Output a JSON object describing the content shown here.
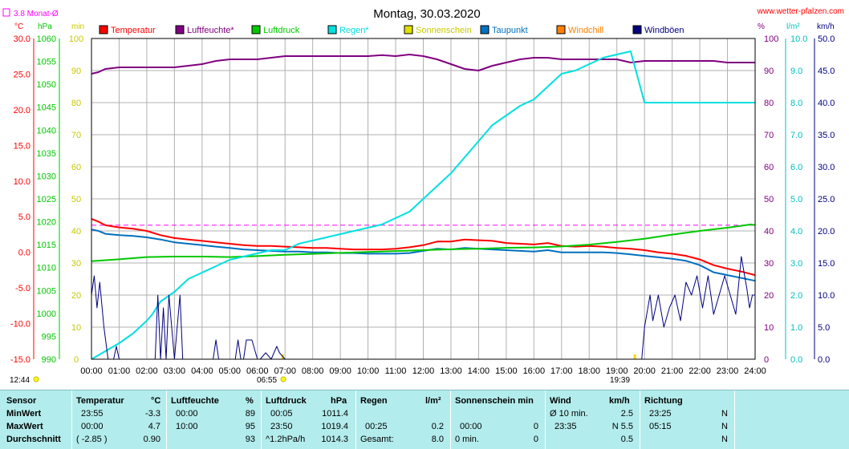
{
  "title": "Montag, 30.03.2020",
  "site": "www.wetter-pfalzen.com",
  "monthly_avg_label": "3.8 Monat-Ø",
  "colors": {
    "temperatur": "#ff0000",
    "luftfeuchte": "#800080",
    "luftdruck": "#00c800",
    "regen": "#00e0e0",
    "sonnenschein": "#e0e000",
    "taupunkt": "#0070c0",
    "windchill": "#ff8000",
    "windboeen": "#000080",
    "avg_line": "#ff00ff"
  },
  "units": {
    "temp": "°C",
    "pressure": "hPa",
    "sun": "min",
    "humidity": "%",
    "rain": "l/m²",
    "wind": "km/h"
  },
  "legend": [
    "Temperatur",
    "Luftfeuchte*",
    "Luftdruck",
    "Regen*",
    "Sonnenschein",
    "Taupunkt",
    "Windchill",
    "Windböen"
  ],
  "markers": {
    "sunrise": "06:55",
    "sunset": "19:39",
    "left_time": "12:44"
  },
  "chart_data": {
    "type": "line",
    "x_ticks": [
      "00:00",
      "01:00",
      "02:00",
      "03:00",
      "04:00",
      "05:00",
      "06:00",
      "07:00",
      "08:00",
      "09:00",
      "10:00",
      "11:00",
      "12:00",
      "13:00",
      "14:00",
      "15:00",
      "16:00",
      "17:00",
      "18:00",
      "19:00",
      "20:00",
      "21:00",
      "22:00",
      "23:00",
      "24:00"
    ],
    "x_range_hours": [
      0,
      24
    ],
    "axes": {
      "temp": {
        "range": [
          -15,
          30
        ],
        "ticks": [
          "30.0",
          "25.0",
          "20.0",
          "15.0",
          "10.0",
          "5.0",
          "0.0",
          "-5.0",
          "-10.0",
          "-15.0"
        ]
      },
      "pressure": {
        "range": [
          990,
          1060
        ],
        "ticks": [
          "1060",
          "1055",
          "1050",
          "1045",
          "1040",
          "1035",
          "1030",
          "1025",
          "1020",
          "1015",
          "1010",
          "1005",
          "1000",
          "995",
          "990"
        ]
      },
      "sun": {
        "range": [
          0,
          100
        ],
        "ticks": [
          "100",
          "90",
          "80",
          "70",
          "60",
          "50",
          "40",
          "30",
          "20",
          "10",
          "0"
        ]
      },
      "humidity": {
        "range": [
          0,
          100
        ],
        "ticks": [
          "100",
          "90",
          "80",
          "70",
          "60",
          "50",
          "40",
          "30",
          "20",
          "10",
          "0"
        ]
      },
      "rain": {
        "range": [
          0,
          10
        ],
        "ticks": [
          "10.0",
          "9.0",
          "8.0",
          "7.0",
          "6.0",
          "5.0",
          "4.0",
          "3.0",
          "2.0",
          "1.0",
          "0.0"
        ]
      },
      "wind": {
        "range": [
          0,
          50
        ],
        "ticks": [
          "50.0",
          "45.0",
          "40.0",
          "35.0",
          "30.0",
          "25.0",
          "20.0",
          "15.0",
          "10.0",
          "5.0",
          "0.0"
        ]
      }
    },
    "monthly_avg_temp": 3.8,
    "series": [
      {
        "name": "Temperatur",
        "axis": "temp",
        "color": "#ff0000",
        "x": [
          0,
          0.25,
          0.5,
          1,
          1.5,
          2,
          2.5,
          3,
          3.5,
          4,
          4.5,
          5,
          5.5,
          6,
          6.5,
          7,
          7.5,
          8,
          8.5,
          9,
          9.5,
          10,
          10.5,
          11,
          11.5,
          12,
          12.5,
          13,
          13.5,
          14,
          14.5,
          15,
          15.5,
          16,
          16.5,
          17,
          17.5,
          18,
          18.5,
          19,
          19.5,
          20,
          20.5,
          21,
          21.5,
          22,
          22.5,
          23,
          23.5,
          24
        ],
        "y": [
          4.7,
          4.3,
          3.8,
          3.5,
          3.3,
          3.0,
          2.4,
          2.0,
          1.8,
          1.6,
          1.4,
          1.2,
          1.0,
          0.9,
          0.9,
          0.8,
          0.7,
          0.6,
          0.6,
          0.5,
          0.4,
          0.4,
          0.4,
          0.5,
          0.7,
          1.0,
          1.5,
          1.5,
          1.8,
          1.7,
          1.6,
          1.3,
          1.2,
          1.1,
          1.3,
          0.9,
          0.8,
          0.9,
          0.8,
          0.6,
          0.5,
          0.3,
          0.0,
          -0.2,
          -0.5,
          -1.0,
          -1.8,
          -2.3,
          -2.7,
          -3.2
        ]
      },
      {
        "name": "Taupunkt",
        "axis": "temp",
        "color": "#0070c0",
        "x": [
          0,
          0.25,
          0.5,
          1,
          1.5,
          2,
          2.5,
          3,
          3.5,
          4,
          4.5,
          5,
          5.5,
          6,
          6.5,
          7,
          7.5,
          8,
          8.5,
          9,
          9.5,
          10,
          10.5,
          11,
          11.5,
          12,
          12.5,
          13,
          13.5,
          14,
          14.5,
          15,
          15.5,
          16,
          16.5,
          17,
          17.5,
          18,
          18.5,
          19,
          19.5,
          20,
          20.5,
          21,
          21.5,
          22,
          22.5,
          23,
          23.5,
          24
        ],
        "y": [
          3.2,
          3.0,
          2.6,
          2.4,
          2.3,
          2.1,
          1.8,
          1.4,
          1.2,
          1.0,
          0.8,
          0.6,
          0.4,
          0.3,
          0.2,
          0.1,
          0.1,
          0.0,
          0.0,
          -0.1,
          -0.1,
          -0.2,
          -0.2,
          -0.2,
          -0.1,
          0.2,
          0.5,
          0.4,
          0.6,
          0.5,
          0.4,
          0.3,
          0.2,
          0.1,
          0.3,
          0.0,
          0.0,
          0.0,
          0.0,
          -0.1,
          -0.3,
          -0.5,
          -0.7,
          -0.9,
          -1.2,
          -1.8,
          -2.8,
          -3.2,
          -3.6,
          -4.0
        ]
      },
      {
        "name": "Luftdruck",
        "axis": "pressure",
        "color": "#00c800",
        "x": [
          0,
          1,
          2,
          3,
          4,
          5,
          6,
          7,
          8,
          9,
          10,
          11,
          12,
          13,
          14,
          15,
          16,
          17,
          18,
          19,
          20,
          21,
          22,
          23,
          23.83,
          24
        ],
        "y": [
          1011.4,
          1011.8,
          1012.3,
          1012.4,
          1012.4,
          1012.3,
          1012.5,
          1012.8,
          1013.0,
          1013.2,
          1013.4,
          1013.6,
          1013.8,
          1014.0,
          1014.1,
          1014.3,
          1014.4,
          1014.6,
          1015.0,
          1015.6,
          1016.3,
          1017.2,
          1018.0,
          1018.7,
          1019.4,
          1019.3
        ]
      },
      {
        "name": "Luftfeuchte*",
        "axis": "humidity",
        "color": "#800080",
        "x": [
          0,
          0.25,
          0.5,
          1,
          1.5,
          2,
          2.5,
          3,
          3.5,
          4,
          4.5,
          5,
          5.5,
          6,
          6.5,
          7,
          7.5,
          8,
          8.5,
          9,
          9.5,
          10,
          10.5,
          11,
          11.5,
          12,
          12.5,
          13,
          13.5,
          14,
          14.5,
          15,
          15.5,
          16,
          16.5,
          17,
          17.5,
          18,
          18.5,
          19,
          19.5,
          20,
          20.5,
          21,
          21.5,
          22,
          22.5,
          23,
          23.5,
          24
        ],
        "y": [
          89,
          89.5,
          90.5,
          91,
          91,
          91,
          91,
          91,
          91.5,
          92,
          93,
          93.5,
          93.5,
          93.5,
          94,
          94.5,
          94.5,
          94.5,
          94.5,
          94.5,
          94.5,
          94.5,
          94.8,
          94.5,
          95,
          94.5,
          93.5,
          92,
          90.5,
          90,
          91.5,
          92.5,
          93.5,
          94,
          94,
          93.5,
          93.5,
          93.5,
          93.5,
          93.5,
          92.5,
          93,
          93,
          93,
          93,
          93,
          93,
          92.5,
          92.5,
          92.5
        ]
      },
      {
        "name": "Regen*",
        "axis": "rain",
        "color": "#00e0e0",
        "x": [
          0,
          0.4,
          0.6,
          1,
          1.5,
          2,
          2.2,
          2.5,
          3,
          3.5,
          4,
          4.5,
          5,
          5.5,
          6,
          6.5,
          7,
          7.5,
          8,
          8.5,
          9,
          9.5,
          10,
          10.5,
          11,
          11.5,
          12,
          12.5,
          13,
          13.5,
          14,
          14.5,
          15,
          15.5,
          16,
          16.5,
          17,
          17.5,
          18,
          18.5,
          19,
          19.5,
          20,
          21,
          22,
          23,
          24
        ],
        "y": [
          0,
          0.2,
          0.3,
          0.5,
          0.8,
          1.2,
          1.4,
          1.8,
          2.1,
          2.5,
          2.7,
          2.9,
          3.1,
          3.2,
          3.3,
          3.4,
          3.4,
          3.6,
          3.7,
          3.8,
          3.9,
          4.0,
          4.1,
          4.2,
          4.4,
          4.6,
          5.0,
          5.4,
          5.8,
          6.3,
          6.8,
          7.3,
          7.6,
          7.9,
          8.1,
          8.5,
          8.9,
          9.0,
          9.2,
          9.4,
          9.5,
          9.6,
          8.0,
          8.0,
          8.0,
          8.0,
          8.0
        ]
      },
      {
        "name": "Windböen",
        "axis": "wind",
        "color": "#000080",
        "x": [
          0,
          0.1,
          0.2,
          0.3,
          0.45,
          0.6,
          0.8,
          0.9,
          1.0,
          1.1,
          1.2,
          1.3,
          2.3,
          2.4,
          2.5,
          2.6,
          2.7,
          2.8,
          3.0,
          3.1,
          3.2,
          3.3,
          4.4,
          4.5,
          4.6,
          4.7,
          4.8,
          5.2,
          5.3,
          5.4,
          5.5,
          5.6,
          5.8,
          6.0,
          6.1,
          6.3,
          6.5,
          6.7,
          6.8,
          7.0,
          7.1,
          19.9,
          20.0,
          20.2,
          20.3,
          20.5,
          20.7,
          20.9,
          21.1,
          21.3,
          21.5,
          21.7,
          21.9,
          22.1,
          22.3,
          22.5,
          22.7,
          22.9,
          23.1,
          23.3,
          23.5,
          23.7,
          23.8,
          23.9,
          24
        ],
        "y": [
          10,
          13,
          8,
          12,
          5,
          0,
          0,
          2,
          0,
          0,
          0,
          0,
          0,
          10,
          0,
          8,
          0,
          10,
          0,
          5,
          10,
          0,
          0,
          3,
          0,
          0,
          0,
          0,
          3,
          0,
          0,
          3,
          3,
          0,
          0,
          1,
          0,
          2,
          1,
          0,
          0,
          0,
          5,
          10,
          6,
          10,
          5,
          8,
          10,
          6,
          12,
          10,
          13,
          8,
          13,
          7,
          10,
          13,
          10,
          7,
          16,
          11,
          8,
          10,
          10
        ]
      }
    ],
    "sunshine": {
      "values_minutes": [
        0
      ]
    }
  },
  "stats": {
    "headers": {
      "sensor": "Sensor",
      "temp": "Temperatur",
      "temp_unit": "°C",
      "hum": "Luftfeuchte",
      "hum_unit": "%",
      "press": "Luftdruck",
      "press_unit": "hPa",
      "rain": "Regen",
      "rain_unit": "l/m²",
      "sun": "Sonnenschein min",
      "wind": "Wind",
      "wind_unit": "km/h",
      "dir": "Richtung"
    },
    "rows": [
      {
        "label": "MinWert",
        "temp_time": "23:55",
        "temp_val": "-3.3",
        "hum_time": "00:00",
        "hum_val": "89",
        "press_time": "00:05",
        "press_val": "1011.4",
        "rain_time": "",
        "rain_val": "",
        "sun_time": "",
        "sun_val": "",
        "wind_time": "Ø 10 min.",
        "wind_val": "2.5",
        "dir_time": "23:25",
        "dir_val": "N"
      },
      {
        "label": "MaxWert",
        "temp_time": "00:00",
        "temp_val": "4.7",
        "hum_time": "10:00",
        "hum_val": "95",
        "press_time": "23:50",
        "press_val": "1019.4",
        "rain_time": "00:25",
        "rain_val": "0.2",
        "sun_time": "00:00",
        "sun_val": "0",
        "wind_time": "23:35",
        "wind_val": "N 5.5",
        "dir_time": "05:15",
        "dir_val": "N"
      },
      {
        "label": "Durchschnitt",
        "temp_time": "( -2.85 )",
        "temp_val": "0.90",
        "hum_time": "",
        "hum_val": "93",
        "press_time": "^1.2hPa/h",
        "press_val": "1014.3",
        "rain_time": "Gesamt:",
        "rain_val": "8.0",
        "sun_time": "0 min.",
        "sun_val": "0",
        "wind_time": "",
        "wind_val": "0.5",
        "dir_time": "",
        "dir_val": "N"
      }
    ]
  }
}
